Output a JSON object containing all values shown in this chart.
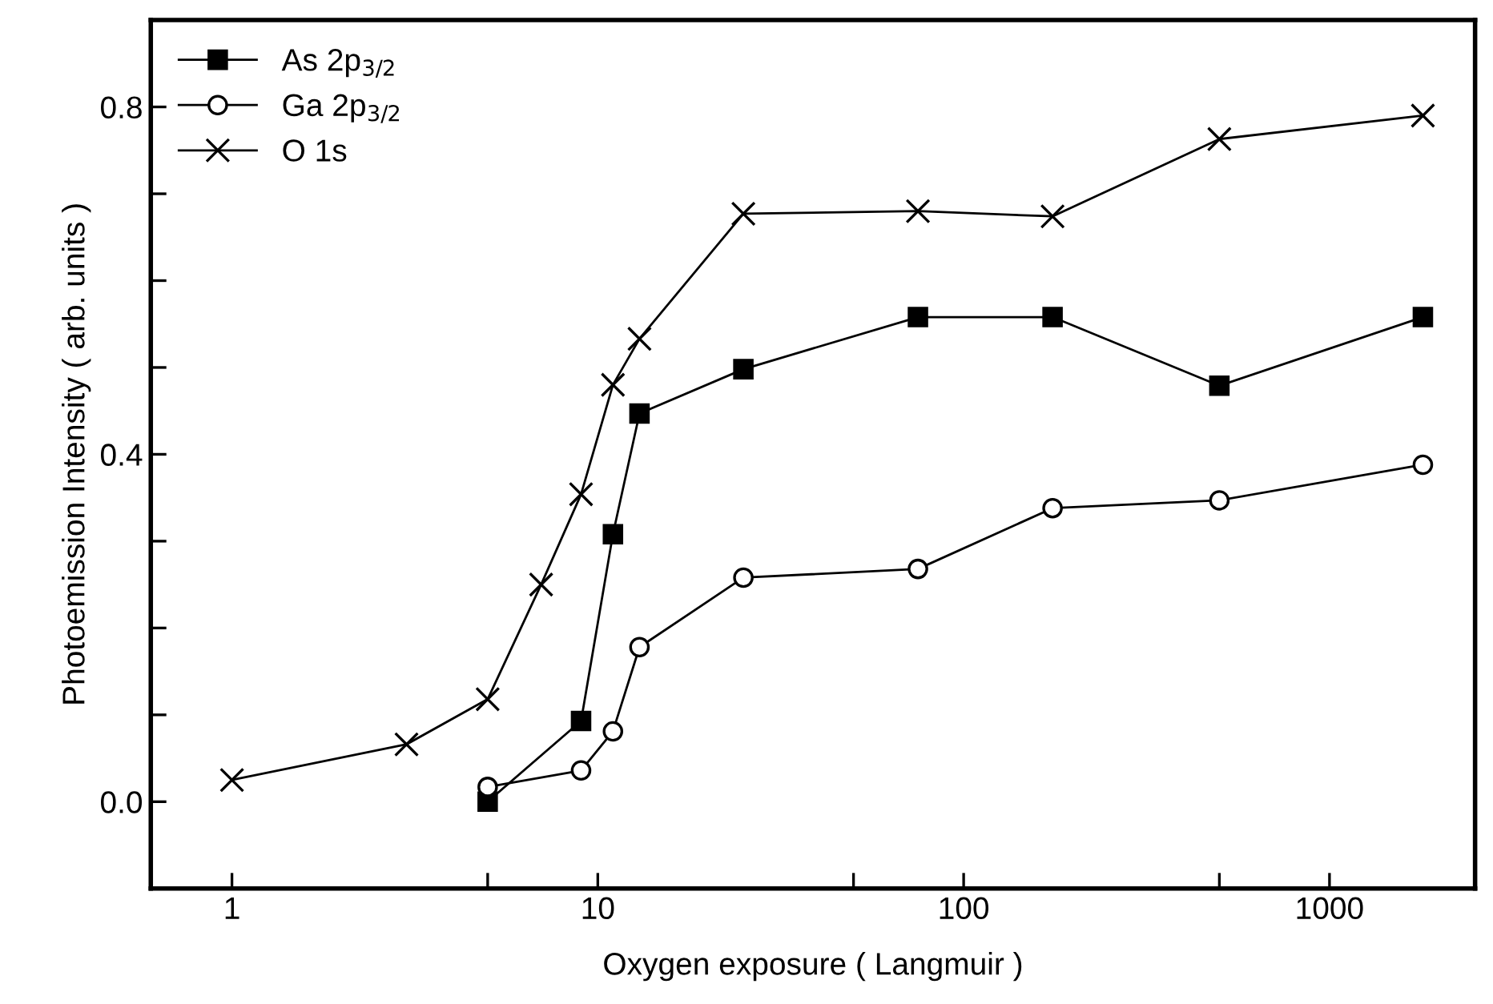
{
  "chart_data": {
    "type": "line",
    "xlabel": "Oxygen exposure ( Langmuir )",
    "ylabel": "Photoemission Intensity ( arb. units )",
    "log": "x",
    "xlim": [
      0.6,
      2500
    ],
    "ylim": [
      -0.1,
      0.9
    ],
    "xticks": [
      1,
      {
        "value": 5,
        "label": null
      },
      10,
      {
        "value": 50,
        "label": null
      },
      100,
      {
        "value": 500,
        "label": null
      },
      1000
    ],
    "yticks": [
      {
        "value": 0,
        "label": "0.0"
      },
      {
        "value": 0.1,
        "label": null
      },
      {
        "value": 0.2,
        "label": null
      },
      {
        "value": 0.3,
        "label": null
      },
      0.4,
      {
        "value": 0.5,
        "label": null
      },
      {
        "value": 0.6,
        "label": null
      },
      {
        "value": 0.7,
        "label": null
      },
      0.8
    ],
    "grid": false,
    "legend": "top left",
    "line_style": "solid",
    "series": [
      {
        "name": "As 2p$_{3/2}$",
        "color": "#000000",
        "marker": "square",
        "x": [
          5,
          9,
          11,
          13,
          25,
          75,
          175,
          500,
          1800
        ],
        "values": [
          0.0,
          0.093,
          0.308,
          0.447,
          0.498,
          0.558,
          0.558,
          0.479,
          0.558
        ]
      },
      {
        "name": "Ga 2p$_{3/2}$",
        "color": "#000000",
        "marker": "circle",
        "x": [
          5,
          9,
          11,
          13,
          25,
          75,
          175,
          500,
          1800
        ],
        "values": [
          0.017,
          0.036,
          0.081,
          0.178,
          0.258,
          0.268,
          0.338,
          0.347,
          0.388
        ]
      },
      {
        "name": "O 1s",
        "color": "#000000",
        "marker": "cross",
        "x": [
          1,
          3,
          5,
          7,
          9,
          11,
          13,
          25,
          75,
          175,
          500,
          1800
        ],
        "values": [
          0.025,
          0.066,
          0.118,
          0.25,
          0.354,
          0.48,
          0.533,
          0.677,
          0.68,
          0.674,
          0.763,
          0.79
        ]
      }
    ]
  }
}
